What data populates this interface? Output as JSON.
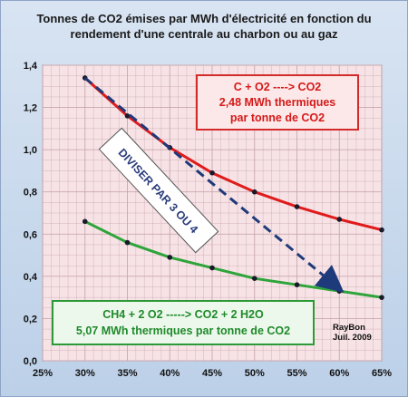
{
  "chart_data": {
    "type": "line",
    "title": "Tonnes de CO2 émises par MWh d'électricité en fonction du rendement d'une centrale au charbon ou au gaz",
    "x": [
      "30%",
      "35%",
      "40%",
      "45%",
      "50%",
      "55%",
      "60%",
      "65%"
    ],
    "x_values": [
      0.3,
      0.35,
      0.4,
      0.45,
      0.5,
      0.55,
      0.6,
      0.65
    ],
    "xlim": [
      0.25,
      0.65
    ],
    "x_ticks": [
      "25%",
      "30%",
      "35%",
      "40%",
      "45%",
      "50%",
      "55%",
      "60%",
      "65%"
    ],
    "ylim": [
      0,
      1.4
    ],
    "y_ticks": [
      "0,0",
      "0,2",
      "0,4",
      "0,6",
      "0,8",
      "1,0",
      "1,2",
      "1,4"
    ],
    "grid": true,
    "series": [
      {
        "color": "#e01b1b",
        "values": [
          1.34,
          1.16,
          1.01,
          0.89,
          0.8,
          0.73,
          0.67,
          0.62
        ]
      },
      {
        "color": "#2ea43a",
        "values": [
          0.66,
          0.56,
          0.49,
          0.44,
          0.39,
          0.36,
          0.33,
          0.3
        ]
      }
    ],
    "arrow": {
      "from": [
        0.3,
        1.34
      ],
      "to": [
        0.6,
        0.33
      ],
      "color": "#1f3a7a"
    },
    "annotations": {
      "coal_line1": "C + O2 ----> CO2",
      "coal_line2": "2,48 MWh thermiques",
      "coal_line3": "par tonne de CO2",
      "gas_line1": "CH4 + 2 O2  -----> CO2  + 2 H2O",
      "gas_line2": "5,07 MWh thermiques par tonne de CO2",
      "divide": "DIVISER PAR 3 OU 4",
      "author": "RayBon",
      "date": "Juil. 2009"
    }
  },
  "colors": {
    "plot_bg": "#f7e3e6",
    "grid": "#c9a7ad",
    "frame_bg": "#c9d9ee"
  }
}
